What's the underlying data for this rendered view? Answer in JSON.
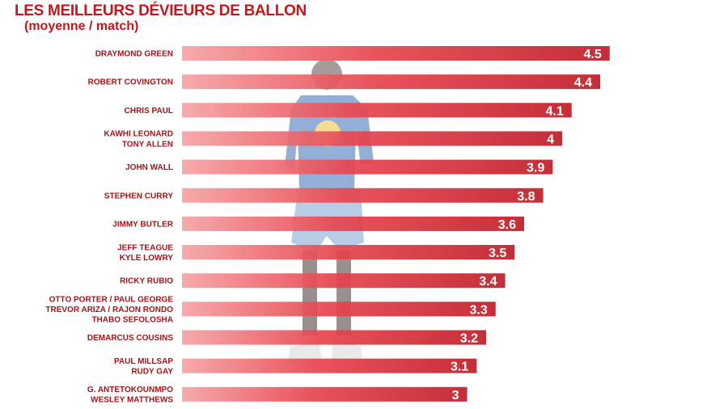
{
  "chart_data": {
    "type": "bar",
    "orientation": "horizontal",
    "title": "LES MEILLEURS DÉVIEURS DE BALLON",
    "subtitle": "(moyenne / match)",
    "categories": [
      [
        "DRAYMOND GREEN"
      ],
      [
        "ROBERT COVINGTON"
      ],
      [
        "CHRIS PAUL"
      ],
      [
        "KAWHI LEONARD",
        "TONY ALLEN"
      ],
      [
        "JOHN WALL"
      ],
      [
        "STEPHEN CURRY"
      ],
      [
        "JIMMY BUTLER"
      ],
      [
        "JEFF TEAGUE",
        "KYLE LOWRY"
      ],
      [
        "RICKY RUBIO"
      ],
      [
        "OTTO PORTER / PAUL GEORGE",
        "TREVOR ARIZA / RAJON RONDO",
        "THABO SEFOLOSHA"
      ],
      [
        "DEMARCUS COUSINS"
      ],
      [
        "PAUL MILLSAP",
        "RUDY GAY"
      ],
      [
        "G. ANTETOKOUNMPO",
        "WESLEY MATTHEWS"
      ]
    ],
    "values": [
      4.5,
      4.4,
      4.1,
      4,
      3.9,
      3.8,
      3.6,
      3.5,
      3.4,
      3.3,
      3.2,
      3.1,
      3
    ],
    "value_labels": [
      "4.5",
      "4.4",
      "4.1",
      "4",
      "3.9",
      "3.8",
      "3.6",
      "3.5",
      "3.4",
      "3.3",
      "3.2",
      "3.1",
      "3"
    ],
    "colors": {
      "bar_light": "#f6a4a6",
      "bar_mid": "#e8464f",
      "bar_dark": "#c01d28",
      "label": "#a3141a",
      "title": "#c4161c"
    }
  }
}
